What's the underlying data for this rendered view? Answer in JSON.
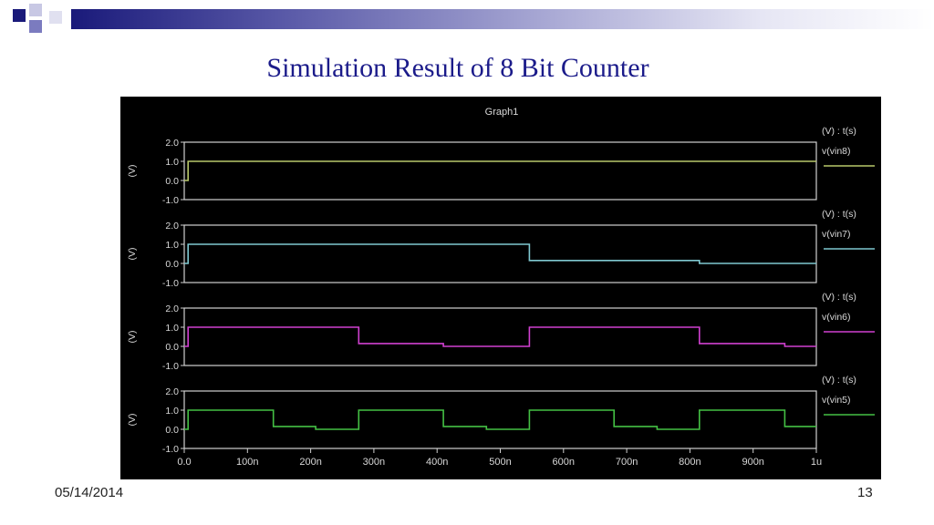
{
  "slide": {
    "title": "Simulation Result of 8 Bit Counter",
    "date": "05/14/2014",
    "page_number": "13"
  },
  "colors": {
    "banner_dark": "#1a1a7a",
    "title": "#1b1b8a",
    "plot_bg": "#000000",
    "frame": "#d0d0d0"
  },
  "chart_data": {
    "type": "line",
    "title": "Graph1",
    "xlabel": "",
    "x_ticks": [
      "0.0",
      "100n",
      "200n",
      "300n",
      "400n",
      "500n",
      "600n",
      "700n",
      "800n",
      "900n",
      "1u"
    ],
    "xlim_ns": [
      0,
      1000
    ],
    "ylim": [
      -1.0,
      2.0
    ],
    "y_ticks": [
      "2.0",
      "1.0",
      "0.0",
      "-1.0"
    ],
    "grid": false,
    "panels": [
      {
        "ylabel": "(V)",
        "unit_label": "(V) : t(s)",
        "name": "v(vin8)",
        "color": "#b8c86a",
        "points": [
          [
            0,
            0
          ],
          [
            6,
            0
          ],
          [
            6,
            1.0
          ],
          [
            1000,
            1.0
          ]
        ]
      },
      {
        "ylabel": "(V)",
        "unit_label": "(V) : t(s)",
        "name": "v(vin7)",
        "color": "#7fc8d0",
        "points": [
          [
            0,
            0
          ],
          [
            6,
            0
          ],
          [
            6,
            1.0
          ],
          [
            546,
            1.0
          ],
          [
            546,
            0.15
          ],
          [
            815,
            0.15
          ],
          [
            815,
            0
          ],
          [
            1000,
            0
          ]
        ]
      },
      {
        "ylabel": "(V)",
        "unit_label": "(V) : t(s)",
        "name": "v(vin6)",
        "color": "#d040d0",
        "points": [
          [
            0,
            0
          ],
          [
            6,
            0
          ],
          [
            6,
            1.0
          ],
          [
            276,
            1.0
          ],
          [
            276,
            0.15
          ],
          [
            410,
            0.15
          ],
          [
            410,
            0
          ],
          [
            546,
            0
          ],
          [
            546,
            1.0
          ],
          [
            815,
            1.0
          ],
          [
            815,
            0.15
          ],
          [
            950,
            0.15
          ],
          [
            950,
            0
          ],
          [
            1000,
            0
          ]
        ]
      },
      {
        "ylabel": "(V)",
        "unit_label": "(V) : t(s)",
        "name": "v(vin5)",
        "color": "#44c044",
        "points": [
          [
            0,
            0
          ],
          [
            6,
            0
          ],
          [
            6,
            1.0
          ],
          [
            141,
            1.0
          ],
          [
            141,
            0.15
          ],
          [
            208,
            0.15
          ],
          [
            208,
            0
          ],
          [
            276,
            0
          ],
          [
            276,
            1.0
          ],
          [
            410,
            1.0
          ],
          [
            410,
            0.15
          ],
          [
            478,
            0.15
          ],
          [
            478,
            0
          ],
          [
            546,
            0
          ],
          [
            546,
            1.0
          ],
          [
            680,
            1.0
          ],
          [
            680,
            0.15
          ],
          [
            748,
            0.15
          ],
          [
            748,
            0
          ],
          [
            815,
            0
          ],
          [
            815,
            1.0
          ],
          [
            950,
            1.0
          ],
          [
            950,
            0.15
          ],
          [
            1000,
            0.15
          ]
        ]
      }
    ]
  }
}
